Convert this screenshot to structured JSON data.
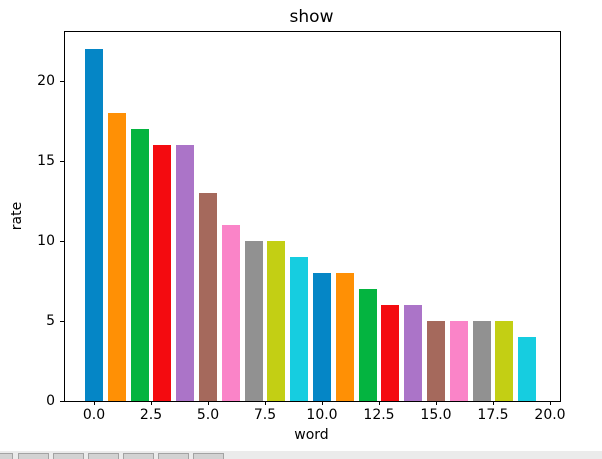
{
  "chart_data": {
    "type": "bar",
    "title": "show",
    "xlabel": "word",
    "ylabel": "rate",
    "x": [
      0,
      1,
      2,
      3,
      4,
      5,
      6,
      7,
      8,
      9,
      10,
      11,
      12,
      13,
      14,
      15,
      16,
      17,
      18,
      19
    ],
    "values": [
      22,
      18,
      17,
      16,
      16,
      13,
      11,
      10,
      10,
      9,
      8,
      8,
      7,
      6,
      6,
      5,
      5,
      5,
      5,
      4
    ],
    "color_cycle": [
      "#0586c6",
      "#ff9005",
      "#04b440",
      "#f40b10",
      "#ab74c8",
      "#a5695c",
      "#fa84c8",
      "#919191",
      "#c3cf14",
      "#16cde0"
    ],
    "xticks": {
      "values": [
        0,
        2.5,
        5,
        7.5,
        10,
        12.5,
        15,
        17.5,
        20
      ],
      "labels": [
        "0.0",
        "2.5",
        "5.0",
        "7.5",
        "10.0",
        "12.5",
        "15.0",
        "17.5",
        "20.0"
      ]
    },
    "yticks": {
      "values": [
        0,
        5,
        10,
        15,
        20
      ],
      "labels": [
        "0",
        "5",
        "10",
        "15",
        "20"
      ]
    },
    "xlim": [
      -1.27,
      20.44
    ],
    "ylim": [
      0,
      23.1
    ],
    "grid": false,
    "legend": "none",
    "axis_color": "#000000",
    "background": "#ffffff"
  },
  "taskbar": {
    "button_count": 7,
    "strip_color": "#ebebeb"
  }
}
